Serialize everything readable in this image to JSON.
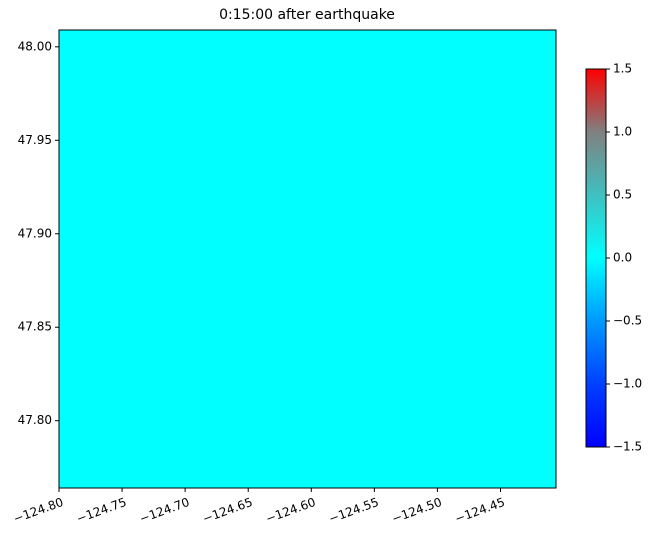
{
  "chart_data": {
    "type": "heatmap",
    "title": "0:15:00 after earthquake",
    "values": [
      [
        0
      ]
    ],
    "xlim": [
      -124.8,
      -124.406
    ],
    "ylim": [
      47.764,
      48.009
    ],
    "xticks": [
      {
        "value": -124.8,
        "label": "−124.80"
      },
      {
        "value": -124.75,
        "label": "−124.75"
      },
      {
        "value": -124.7,
        "label": "−124.70"
      },
      {
        "value": -124.65,
        "label": "−124.65"
      },
      {
        "value": -124.6,
        "label": "−124.60"
      },
      {
        "value": -124.55,
        "label": "−124.55"
      },
      {
        "value": -124.5,
        "label": "−124.50"
      },
      {
        "value": -124.45,
        "label": "−124.45"
      }
    ],
    "yticks": [
      {
        "value": 47.8,
        "label": "47.80"
      },
      47.85,
      {
        "value": 47.9,
        "label": "47.90"
      },
      47.95,
      {
        "value": 48,
        "label": "48.00"
      }
    ],
    "clim": [
      -1.5,
      1.5
    ],
    "cticks": [
      {
        "value": -1.5,
        "label": "−1.5"
      },
      {
        "value": -1,
        "label": "−1.0"
      },
      {
        "value": -0.5,
        "label": "−0.5"
      },
      {
        "value": 0,
        "label": "0.0"
      },
      0.5,
      {
        "value": 1,
        "label": "1.0"
      },
      1.5
    ],
    "colormap": [
      "#0000ff",
      "#0040ff",
      "#0099ff",
      "#00ffff",
      "#40c0c0",
      "#808080",
      "#ff0000"
    ]
  }
}
